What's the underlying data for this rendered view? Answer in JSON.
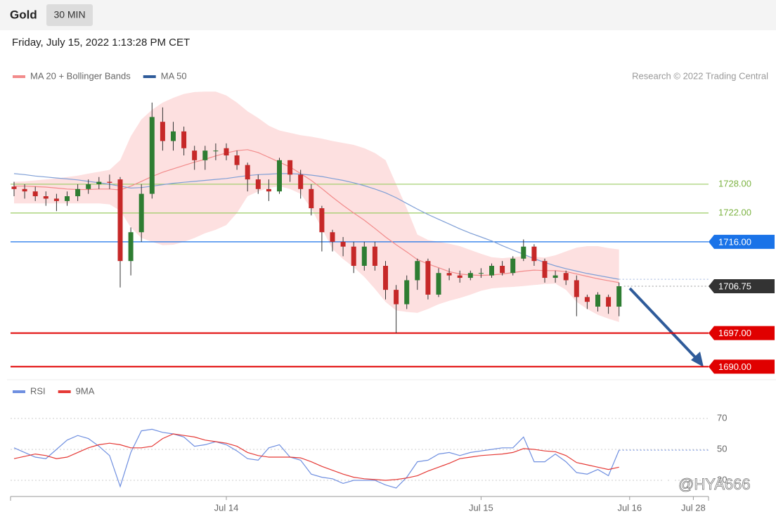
{
  "header": {
    "symbol": "Gold",
    "interval": "30 MIN",
    "timestamp": "Friday, July 15, 2022 1:13:28 PM CET"
  },
  "watermark": "@HYA666",
  "chart_data": [
    {
      "type": "candlestick",
      "credit": "Research © 2022 Trading Central",
      "ylim": [
        1688,
        1749
      ],
      "up_color": "#2e7d32",
      "down_color": "#c62828",
      "band_color": "#fde0e0",
      "ohlc": [
        [
          1727.5,
          1728.5,
          1725.5,
          1727
        ],
        [
          1727,
          1728,
          1725,
          1726.5
        ],
        [
          1726.5,
          1727.5,
          1724.5,
          1725.5
        ],
        [
          1725.5,
          1726.5,
          1723.5,
          1725
        ],
        [
          1725,
          1726,
          1722.4,
          1724.5
        ],
        [
          1724.5,
          1726.5,
          1723.5,
          1725.5
        ],
        [
          1725.5,
          1728,
          1724.5,
          1727
        ],
        [
          1727,
          1729,
          1726,
          1728
        ],
        [
          1728,
          1729.5,
          1727,
          1728.5
        ],
        [
          1728.5,
          1730,
          1727,
          1728.3
        ],
        [
          1729,
          1729.5,
          1706.5,
          1712
        ],
        [
          1712,
          1719,
          1709,
          1718
        ],
        [
          1718,
          1728,
          1716,
          1726
        ],
        [
          1726,
          1745,
          1725,
          1742
        ],
        [
          1741,
          1744,
          1735,
          1737
        ],
        [
          1737,
          1741,
          1735,
          1739
        ],
        [
          1739,
          1740,
          1734,
          1735.5
        ],
        [
          1735,
          1736,
          1731,
          1733
        ],
        [
          1733,
          1736,
          1731,
          1735
        ],
        [
          1735,
          1736.5,
          1733,
          1735
        ],
        [
          1735.5,
          1736.5,
          1733,
          1734
        ],
        [
          1734,
          1735,
          1731,
          1732
        ],
        [
          1732,
          1732.5,
          1726.5,
          1729
        ],
        [
          1729,
          1730,
          1726,
          1727
        ],
        [
          1727,
          1729,
          1724.5,
          1726.5
        ],
        [
          1726.5,
          1733.5,
          1726,
          1733
        ],
        [
          1733,
          1733,
          1728.5,
          1730
        ],
        [
          1730,
          1731,
          1725,
          1727
        ],
        [
          1727,
          1728,
          1721.5,
          1723
        ],
        [
          1723,
          1723.5,
          1714,
          1718
        ],
        [
          1718,
          1718.5,
          1714,
          1716
        ],
        [
          1716,
          1717,
          1713,
          1715
        ],
        [
          1715,
          1716,
          1709.5,
          1711
        ],
        [
          1711,
          1716,
          1710,
          1715
        ],
        [
          1715,
          1716,
          1710,
          1711
        ],
        [
          1711,
          1712,
          1704,
          1706
        ],
        [
          1706,
          1707,
          1697,
          1703
        ],
        [
          1703,
          1709,
          1702,
          1708
        ],
        [
          1708,
          1712.5,
          1706,
          1712
        ],
        [
          1712,
          1712.5,
          1704,
          1705
        ],
        [
          1705,
          1710.5,
          1704.5,
          1709.5
        ],
        [
          1709.5,
          1710.5,
          1708,
          1709
        ],
        [
          1709,
          1710,
          1707.5,
          1708.5
        ],
        [
          1708.5,
          1710,
          1708,
          1709.5
        ],
        [
          1709.5,
          1710.5,
          1708.5,
          1709.5
        ],
        [
          1709,
          1711.5,
          1708.5,
          1711
        ],
        [
          1711,
          1712,
          1709,
          1709.5
        ],
        [
          1709.5,
          1713,
          1709,
          1712.5
        ],
        [
          1712.5,
          1716.5,
          1712,
          1715
        ],
        [
          1715,
          1715.5,
          1711,
          1712
        ],
        [
          1712,
          1712.5,
          1707.5,
          1708.5
        ],
        [
          1708.5,
          1710,
          1707.5,
          1709
        ],
        [
          1709.5,
          1710,
          1707,
          1708
        ],
        [
          1708,
          1709,
          1700.5,
          1704.5
        ],
        [
          1704.5,
          1705,
          1702,
          1703.5
        ],
        [
          1702.5,
          1705.5,
          1701.5,
          1705
        ],
        [
          1704.5,
          1705,
          1701,
          1702.5
        ],
        [
          1702.5,
          1707.5,
          1700.5,
          1706.75
        ]
      ],
      "series": [
        {
          "name": "MA 20 + Bollinger Bands",
          "color": "#f28b8b",
          "values": [
            1727.6,
            1727.6,
            1727.5,
            1727.4,
            1727.2,
            1727,
            1726.9,
            1726.9,
            1727,
            1727,
            1726.8,
            1727.6,
            1728.6,
            1729.6,
            1730.5,
            1731.2,
            1731.9,
            1732.6,
            1733.2,
            1733.9,
            1734.5,
            1735,
            1735.2,
            1734.6,
            1733.6,
            1732.6,
            1731.6,
            1730.2,
            1728.8,
            1727.1,
            1725.3,
            1723.6,
            1722,
            1720.5,
            1718.8,
            1717,
            1715.4,
            1713.9,
            1712.3,
            1711.4,
            1710.6,
            1709.8,
            1709.3,
            1709.1,
            1709,
            1709.1,
            1709.3,
            1709.6,
            1709.9,
            1710.1,
            1710,
            1710,
            1709.8,
            1709.3,
            1708.8,
            1708.3,
            1707.9,
            1707.5
          ],
          "upper": [
            1728.5,
            1728.6,
            1728.8,
            1729,
            1729.2,
            1729.5,
            1729.8,
            1730.2,
            1730.6,
            1731,
            1733,
            1738,
            1741.5,
            1743.5,
            1745,
            1746,
            1746.8,
            1747.2,
            1747.3,
            1747.3,
            1746.5,
            1745,
            1743.2,
            1741.8,
            1740.2,
            1739.2,
            1738.7,
            1738.2,
            1737.9,
            1737.5,
            1737,
            1736.6,
            1736.2,
            1735.5,
            1734.5,
            1733,
            1728,
            1723,
            1717.5,
            1716.4,
            1716,
            1715.6,
            1715.1,
            1714.3,
            1713.5,
            1712.8,
            1712.6,
            1712.8,
            1713,
            1712.9,
            1712.7,
            1713.2,
            1714,
            1714.8,
            1715.1,
            1715.1,
            1714.7,
            1714.4
          ],
          "lower": [
            1724,
            1724,
            1724,
            1724,
            1724,
            1724,
            1724,
            1724,
            1724,
            1723.8,
            1722.5,
            1719,
            1716.8,
            1716,
            1715.3,
            1715.4,
            1716,
            1716.8,
            1717.8,
            1718.5,
            1719.5,
            1722,
            1725.5,
            1726.5,
            1727.2,
            1727.6,
            1727,
            1726,
            1723,
            1718.8,
            1714.5,
            1712.4,
            1710.7,
            1708.7,
            1706.2,
            1703.5,
            1701.7,
            1701.4,
            1701.2,
            1702,
            1703,
            1703.7,
            1704.3,
            1705,
            1705.8,
            1706.3,
            1706.5,
            1706.6,
            1706.8,
            1707,
            1707.2,
            1707.3,
            1706,
            1703.5,
            1702,
            1700.8,
            1700,
            1699.3
          ]
        },
        {
          "name": "MA 50",
          "color": "#2f5b9a",
          "line_color": "#7f9fd6",
          "values": [
            1730.2,
            1730,
            1729.7,
            1729.5,
            1729.3,
            1729.1,
            1728.9,
            1728.6,
            1728.3,
            1728,
            1727.6,
            1727.2,
            1727.3,
            1727.6,
            1727.9,
            1728.2,
            1728.4,
            1728.6,
            1728.8,
            1729,
            1729.2,
            1729.5,
            1729.8,
            1730,
            1730.1,
            1730.2,
            1730.2,
            1730.1,
            1729.9,
            1729.6,
            1729.2,
            1728.8,
            1728.3,
            1727.7,
            1727,
            1726.2,
            1725.2,
            1724,
            1722.8,
            1721.7,
            1720.7,
            1719.7,
            1718.7,
            1717.8,
            1717,
            1716.2,
            1715.2,
            1714.3,
            1713.4,
            1712.5,
            1711.7,
            1711,
            1710.4,
            1709.9,
            1709.4,
            1709,
            1708.6,
            1708.2
          ]
        }
      ],
      "levels": [
        {
          "value": 1728,
          "label": "1728.00",
          "color": "#9ccc65",
          "boxed": false
        },
        {
          "value": 1722,
          "label": "1722.00",
          "color": "#9ccc65",
          "boxed": false
        },
        {
          "value": 1716,
          "label": "1716.00",
          "color": "#1a73e8",
          "boxed": true
        },
        {
          "value": 1706.75,
          "color": "#333333",
          "boxed": true,
          "dotted": true
        },
        {
          "value": 1697,
          "label": "1697.00",
          "color": "#e00000",
          "boxed": true
        },
        {
          "value": 1690,
          "label": "1690.00",
          "color": "#e00000",
          "boxed": true
        }
      ]
    },
    {
      "type": "line",
      "ylim": [
        20,
        93
      ],
      "yticks": [
        70,
        50,
        30
      ],
      "grid": true,
      "categories": [
        null,
        null,
        null,
        null,
        null,
        null,
        null,
        null,
        null,
        null,
        null,
        null,
        null,
        null,
        null,
        null,
        null,
        null,
        null,
        null,
        "Jul 14",
        null,
        null,
        null,
        null,
        null,
        null,
        null,
        null,
        null,
        null,
        null,
        null,
        null,
        null,
        null,
        null,
        null,
        null,
        null,
        null,
        null,
        null,
        null,
        "Jul 15",
        null,
        null,
        null,
        null,
        null,
        null,
        null,
        null,
        null,
        null,
        null,
        null,
        null,
        "Jul 16",
        null,
        null,
        null,
        null,
        null,
        "Jul 28"
      ],
      "series": [
        {
          "name": "RSI",
          "color": "#6f8fe0",
          "values": [
            51,
            48,
            45,
            44,
            50,
            56,
            59,
            57,
            52,
            46,
            26,
            48,
            62,
            63,
            61,
            60,
            58,
            52,
            53,
            55,
            53,
            49,
            44,
            43,
            51,
            53,
            45,
            43,
            34,
            32,
            31,
            28,
            30,
            30,
            30,
            27,
            25,
            32,
            42,
            43,
            47,
            48,
            46,
            48,
            49,
            50,
            51,
            51,
            58,
            42,
            42,
            47,
            42,
            35,
            34,
            37,
            33,
            49.5,
            null,
            null,
            null,
            null,
            null,
            null,
            null
          ]
        },
        {
          "name": "9MA",
          "color": "#e53935",
          "values": [
            44,
            45.5,
            47,
            46,
            44,
            45,
            48,
            51,
            53,
            54,
            53,
            51,
            51,
            52,
            57,
            60,
            59,
            58,
            56,
            55,
            54,
            52,
            48,
            46,
            45,
            45,
            45,
            44.5,
            42,
            39,
            36.5,
            34,
            32,
            31,
            30.5,
            30,
            30.5,
            31.5,
            33,
            36,
            38.5,
            41,
            44,
            45,
            46,
            46.5,
            47,
            48,
            50.5,
            50,
            49,
            48.5,
            46,
            41.5,
            40,
            38.5,
            37,
            38.5,
            null,
            null,
            null,
            null,
            null,
            null,
            null
          ]
        }
      ]
    }
  ]
}
